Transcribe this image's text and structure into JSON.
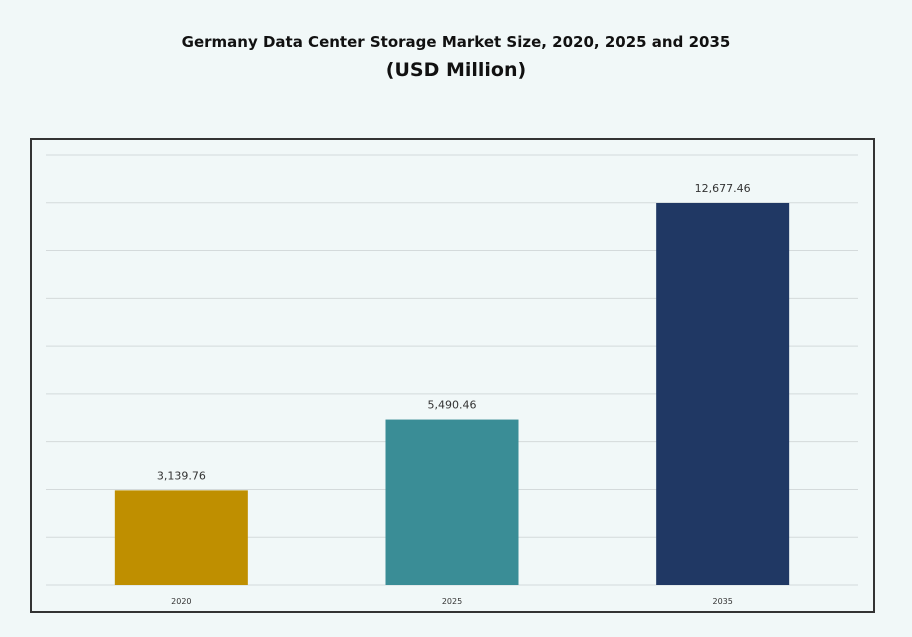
{
  "chart_data": {
    "type": "bar",
    "title": "Germany Data Center Storage Market Size, 2020, 2025 and 2035",
    "subtitle": "(USD Million)",
    "categories": [
      "2020",
      "2025",
      "2035"
    ],
    "values": [
      3139.76,
      5490.46,
      12677.46
    ],
    "value_labels": [
      "3,139.76",
      "5,490.46",
      "12,677.46"
    ],
    "colors": [
      "#bf8f00",
      "#3a8d96",
      "#203864"
    ],
    "xlabel": "",
    "ylabel": "",
    "ylim": [
      0,
      14270
    ],
    "grid": true,
    "legend": "none"
  }
}
